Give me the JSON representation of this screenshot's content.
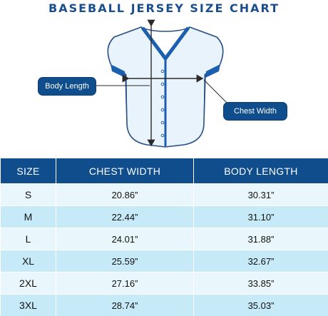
{
  "title": "BASEBALL JERSEY SIZE CHART",
  "callouts": {
    "body_length": "Body Length",
    "chest_width": "Chest Width"
  },
  "table": {
    "headers": [
      "SIZE",
      "CHEST WIDTH",
      "BODY LENGTH"
    ],
    "rows": [
      [
        "S",
        "20.86”",
        "30.31”"
      ],
      [
        "M",
        "22.44”",
        "31.10”"
      ],
      [
        "L",
        "24.01”",
        "31.88”"
      ],
      [
        "XL",
        "25.59”",
        "32.67”"
      ],
      [
        "2XL",
        "27.16”",
        "33.85”"
      ],
      [
        "3XL",
        "28.74”",
        "35.03”"
      ]
    ]
  },
  "colors": {
    "header_bg": "#0f4d8d",
    "row_light": "#e9f6fc",
    "row_dark": "#c6eaf7",
    "jersey_fill": "#e8f3fb",
    "trim": "#1b5fae"
  }
}
